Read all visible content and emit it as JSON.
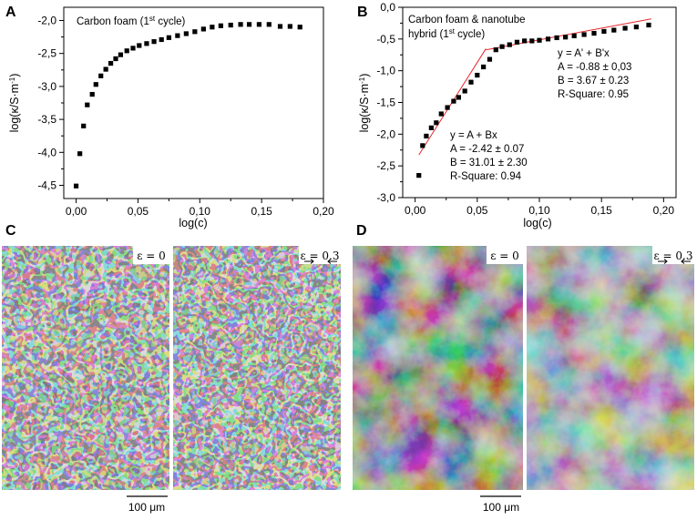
{
  "panels": {
    "A": "A",
    "B": "B",
    "C": "C",
    "D": "D"
  },
  "chart_data": [
    {
      "type": "scatter",
      "panel": "A",
      "annotation": "Carbon foam (1",
      "annotation_sup": "st",
      "annotation_end": " cycle)",
      "xlabel": "log(c)",
      "ylabel": "log(κ/S·m",
      "ylabel_sup": "-1",
      "ylabel_end": ")",
      "xlim": [
        -0.01,
        0.2
      ],
      "ylim": [
        -4.7,
        -1.8
      ],
      "xticks": [
        0.0,
        0.05,
        0.1,
        0.15,
        0.2
      ],
      "xtick_labels": [
        "0,00",
        "0,05",
        "0,10",
        "0,15",
        "0,20"
      ],
      "yticks": [
        -4.5,
        -4.0,
        -3.5,
        -3.0,
        -2.5,
        -2.0
      ],
      "ytick_labels": [
        "-4,5",
        "-4,0",
        "-3,5",
        "-3,0",
        "-2,5",
        "-2,0"
      ],
      "grid": false,
      "points": [
        [
          0.0,
          -4.51
        ],
        [
          0.003,
          -4.02
        ],
        [
          0.006,
          -3.6
        ],
        [
          0.009,
          -3.28
        ],
        [
          0.013,
          -3.12
        ],
        [
          0.016,
          -2.97
        ],
        [
          0.02,
          -2.84
        ],
        [
          0.024,
          -2.74
        ],
        [
          0.028,
          -2.65
        ],
        [
          0.032,
          -2.58
        ],
        [
          0.036,
          -2.52
        ],
        [
          0.041,
          -2.46
        ],
        [
          0.046,
          -2.42
        ],
        [
          0.051,
          -2.38
        ],
        [
          0.057,
          -2.35
        ],
        [
          0.063,
          -2.32
        ],
        [
          0.069,
          -2.29
        ],
        [
          0.075,
          -2.26
        ],
        [
          0.082,
          -2.23
        ],
        [
          0.089,
          -2.2
        ],
        [
          0.096,
          -2.17
        ],
        [
          0.103,
          -2.13
        ],
        [
          0.11,
          -2.1
        ],
        [
          0.117,
          -2.08
        ],
        [
          0.125,
          -2.07
        ],
        [
          0.133,
          -2.06
        ],
        [
          0.14,
          -2.06
        ],
        [
          0.148,
          -2.06
        ],
        [
          0.156,
          -2.06
        ],
        [
          0.165,
          -2.09
        ],
        [
          0.173,
          -2.09
        ],
        [
          0.181,
          -2.1
        ]
      ]
    },
    {
      "type": "scatter",
      "panel": "B",
      "annotation_line1": "Carbon foam & nanotube",
      "annotation_line2": "hybrid (1",
      "annotation_sup": "st",
      "annotation_end": " cycle)",
      "xlabel": "log(c)",
      "ylabel": "log(κ/S·m",
      "ylabel_sup": "-1",
      "ylabel_end": ")",
      "xlim": [
        -0.01,
        0.21
      ],
      "ylim": [
        -3.0,
        0.0
      ],
      "xticks": [
        0.0,
        0.05,
        0.1,
        0.15,
        0.2
      ],
      "xtick_labels": [
        "0,00",
        "0,05",
        "0,10",
        "0,15",
        "0,20"
      ],
      "yticks": [
        -3.0,
        -2.5,
        -2.0,
        -1.5,
        -1.0,
        -0.5,
        0.0
      ],
      "ytick_labels": [
        "-3,0",
        "-2,5",
        "-2,0",
        "-1,5",
        "-1,0",
        "-0,5",
        "0,0"
      ],
      "grid": false,
      "points": [
        [
          0.003,
          -2.65
        ],
        [
          0.006,
          -2.18
        ],
        [
          0.009,
          -2.03
        ],
        [
          0.013,
          -1.9
        ],
        [
          0.017,
          -1.82
        ],
        [
          0.021,
          -1.68
        ],
        [
          0.026,
          -1.58
        ],
        [
          0.031,
          -1.48
        ],
        [
          0.035,
          -1.42
        ],
        [
          0.04,
          -1.32
        ],
        [
          0.045,
          -1.18
        ],
        [
          0.05,
          -1.07
        ],
        [
          0.055,
          -0.94
        ],
        [
          0.06,
          -0.82
        ],
        [
          0.065,
          -0.67
        ],
        [
          0.07,
          -0.62
        ],
        [
          0.076,
          -0.59
        ],
        [
          0.082,
          -0.55
        ],
        [
          0.088,
          -0.53
        ],
        [
          0.094,
          -0.53
        ],
        [
          0.1,
          -0.52
        ],
        [
          0.107,
          -0.5
        ],
        [
          0.114,
          -0.48
        ],
        [
          0.121,
          -0.47
        ],
        [
          0.128,
          -0.45
        ],
        [
          0.136,
          -0.43
        ],
        [
          0.144,
          -0.41
        ],
        [
          0.152,
          -0.38
        ],
        [
          0.16,
          -0.36
        ],
        [
          0.169,
          -0.33
        ],
        [
          0.178,
          -0.31
        ],
        [
          0.188,
          -0.28
        ]
      ],
      "fits": [
        {
          "x": [
            0.003,
            0.057
          ],
          "A": -2.42,
          "B": 31.01
        },
        {
          "x": [
            0.057,
            0.19
          ],
          "A": -0.88,
          "B": 3.67
        }
      ],
      "fit_color": "#e8262a",
      "fit1_text": [
        "y = A' + B'x",
        "A = -0.88 ± 0,03",
        "B = 3.67 ± 0.23",
        "R-Square: 0.95"
      ],
      "fit2_text": [
        "y = A + Bx",
        "A = -2.42 ± 0.07",
        "B = 31.01 ± 2.30",
        "R-Square: 0.94"
      ]
    }
  ],
  "micrographs": {
    "C": {
      "left_tag": "ε = 0",
      "right_tag": "ε = 0.3",
      "scale_bar": "100 μm",
      "texture": "fibrous-mesh"
    },
    "D": {
      "left_tag": "ε = 0",
      "right_tag": "ε = 0.3",
      "scale_bar": "100 μm",
      "texture": "porous-clumps"
    }
  }
}
